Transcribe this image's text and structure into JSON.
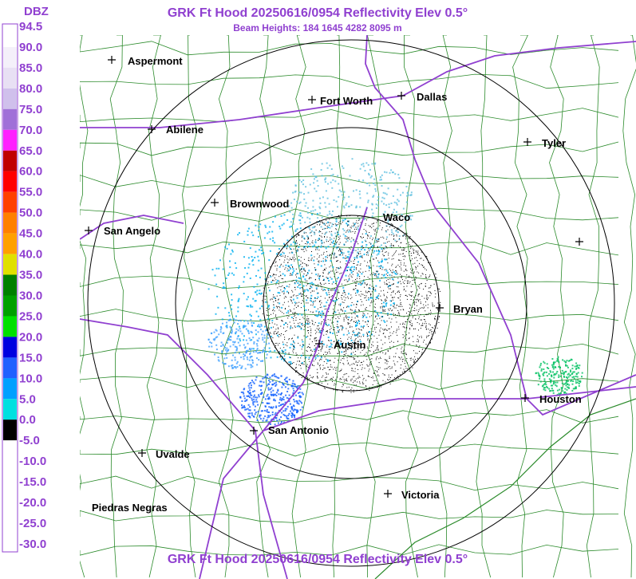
{
  "header": {
    "title": "GRK Ft Hood 20250616/0954 Reflectivity Elev 0.5°",
    "subtitle": "Beam Heights: 184 1645 4282 8095 m"
  },
  "legend": {
    "title": "DBZ",
    "labels": [
      "94.5",
      "90.0",
      "85.0",
      "80.0",
      "75.0",
      "70.0",
      "65.0",
      "60.0",
      "55.0",
      "50.0",
      "45.0",
      "40.0",
      "35.0",
      "30.0",
      "25.0",
      "20.0",
      "15.0",
      "10.0",
      "5.0",
      "0.0",
      "-5.0",
      "-10.0",
      "-15.0",
      "-20.0",
      "-25.0",
      "-30.0"
    ],
    "colors": [
      "#ffffff",
      "#f4f0fa",
      "#e8e0f4",
      "#d0c0ec",
      "#a070d8",
      "#ff20ff",
      "#c00000",
      "#ff0000",
      "#ff4000",
      "#ff8000",
      "#ffa000",
      "#e0e000",
      "#008000",
      "#00a000",
      "#00e000",
      "#0000e0",
      "#2060ff",
      "#00a0ff",
      "#00e0e0",
      "#000000",
      "#ffffff",
      "#ffffff",
      "#ffffff",
      "#ffffff",
      "#ffffff"
    ]
  },
  "cities": [
    "Aspermont",
    "Fort Worth",
    "Dallas",
    "Abilene",
    "Tyler",
    "Brownwood",
    "Waco",
    "San Angelo",
    "Bryan",
    "Austin",
    "Houston",
    "San Antonio",
    "Uvalde",
    "Victoria",
    "Piedras Negras"
  ],
  "footer": {
    "title": "GRK Ft Hood 20250616/0954 Reflectivity Elev 0.5°"
  }
}
